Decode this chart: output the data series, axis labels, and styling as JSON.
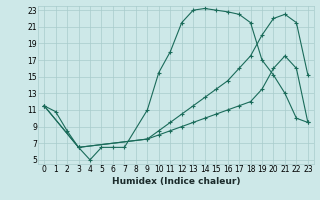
{
  "xlabel": "Humidex (Indice chaleur)",
  "xlim": [
    -0.5,
    23.5
  ],
  "ylim": [
    4.5,
    23.5
  ],
  "xticks": [
    0,
    1,
    2,
    3,
    4,
    5,
    6,
    7,
    8,
    9,
    10,
    11,
    12,
    13,
    14,
    15,
    16,
    17,
    18,
    19,
    20,
    21,
    22,
    23
  ],
  "yticks": [
    5,
    7,
    9,
    11,
    13,
    15,
    17,
    19,
    21,
    23
  ],
  "bg_color": "#cde8e8",
  "grid_color": "#a8cccc",
  "line_color": "#1a6b5a",
  "line1_x": [
    0,
    1,
    2,
    3,
    4,
    5,
    6,
    7,
    9,
    10,
    11,
    12,
    13,
    14,
    15,
    16,
    17,
    18,
    19,
    20,
    21,
    22,
    23
  ],
  "line1_y": [
    11.5,
    10.8,
    8.5,
    6.5,
    5.0,
    6.5,
    6.5,
    6.5,
    11.0,
    15.5,
    18.0,
    21.5,
    23.0,
    23.2,
    23.0,
    22.8,
    22.5,
    21.5,
    17.0,
    15.2,
    13.0,
    10.0,
    9.5
  ],
  "line2_x": [
    0,
    3,
    9,
    10,
    11,
    12,
    13,
    14,
    15,
    16,
    17,
    18,
    19,
    20,
    21,
    22,
    23
  ],
  "line2_y": [
    11.5,
    6.5,
    7.5,
    8.5,
    9.5,
    10.5,
    11.5,
    12.5,
    13.5,
    14.5,
    16.0,
    17.5,
    20.0,
    22.0,
    22.5,
    21.5,
    15.2
  ],
  "line3_x": [
    0,
    3,
    9,
    10,
    11,
    12,
    13,
    14,
    15,
    16,
    17,
    18,
    19,
    20,
    21,
    22,
    23
  ],
  "line3_y": [
    11.5,
    6.5,
    7.5,
    8.0,
    8.5,
    9.0,
    9.5,
    10.0,
    10.5,
    11.0,
    11.5,
    12.0,
    13.5,
    16.0,
    17.5,
    16.0,
    9.5
  ],
  "tick_fontsize": 5.5,
  "xlabel_fontsize": 6.5
}
